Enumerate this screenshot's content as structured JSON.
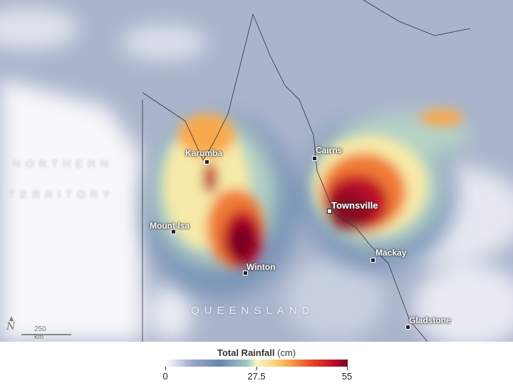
{
  "map": {
    "regions": [
      "NORTHERN",
      "TERRITORY",
      "QUEENSLAND"
    ],
    "cities": [
      {
        "name": "Karumba",
        "type": "town"
      },
      {
        "name": "Cairns",
        "type": "town"
      },
      {
        "name": "Townsville",
        "type": "city"
      },
      {
        "name": "Mount Isa",
        "type": "town"
      },
      {
        "name": "Winton",
        "type": "town"
      },
      {
        "name": "Mackay",
        "type": "town"
      },
      {
        "name": "Gladstone",
        "type": "town"
      }
    ],
    "north_label": "N",
    "scale_label": "250 km"
  },
  "legend": {
    "title": "Total Rainfall",
    "unit": "(cm)",
    "ticks": [
      "0",
      "27.5",
      "55"
    ],
    "range": [
      0,
      55
    ],
    "colors": [
      "#ffffff",
      "#6c86ad",
      "#f6f8c8",
      "#f89442",
      "#c0102a",
      "#7a0020"
    ]
  }
}
